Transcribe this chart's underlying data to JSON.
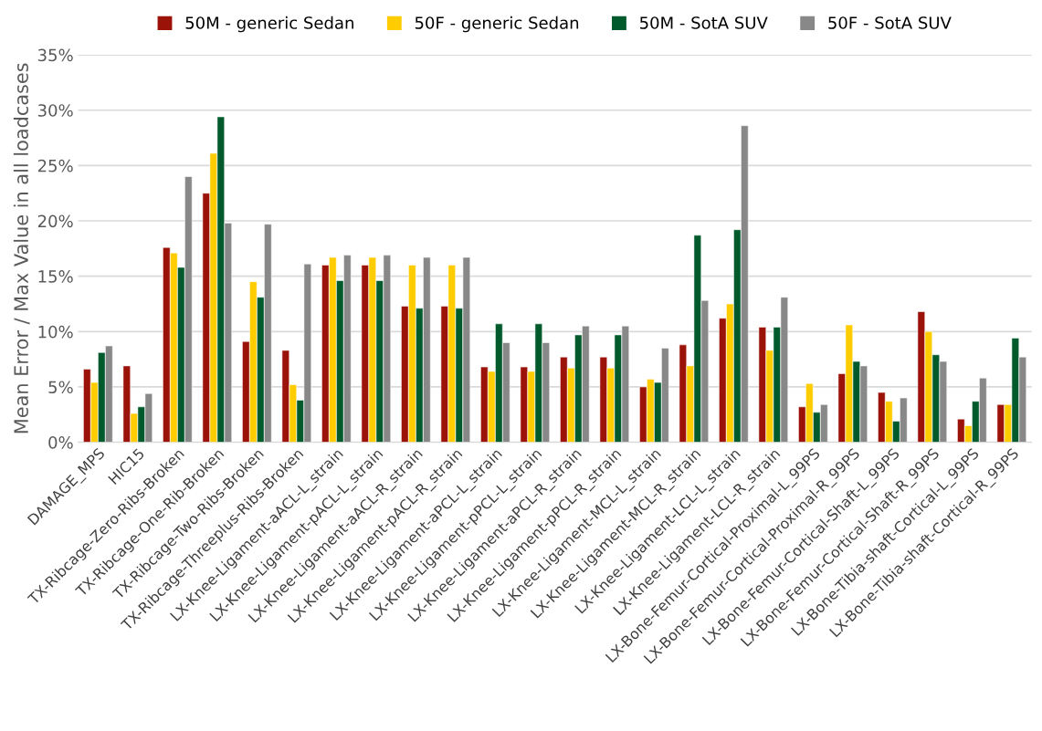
{
  "chart_data": {
    "type": "bar",
    "ylabel": "Mean Error / Max Value in all loadcases",
    "categories": [
      "DAMAGE_MPS",
      "HIC15",
      "TX-Ribcage-Zero-Ribs-Broken",
      "TX-Ribcage-One-Rib-Broken",
      "TX-Ribcage-Two-Ribs-Broken",
      "TX-Ribcage-Threeplus-Ribs-Broken",
      "LX-Knee-Ligament-aACL-L_strain",
      "LX-Knee-Ligament-pACL-L_strain",
      "LX-Knee-Ligament-aACL-R_strain",
      "LX-Knee-Ligament-pACL-R_strain",
      "LX-Knee-Ligament-aPCL-L_strain",
      "LX-Knee-Ligament-pPCL-L_strain",
      "LX-Knee-Ligament-aPCL-R_strain",
      "LX-Knee-Ligament-pPCL-R_strain",
      "LX-Knee-Ligament-MCL-L_strain",
      "LX-Knee-Ligament-MCL-R_strain",
      "LX-Knee-Ligament-LCL-L_strain",
      "LX-Knee-Ligament-LCL-R_strain",
      "LX-Bone-Femur-Cortical-Proximal-L_99PS",
      "LX-Bone-Femur-Cortical-Proximal-R_99PS",
      "LX-Bone-Femur-Cortical-Shaft-L_99PS",
      "LX-Bone-Femur-Cortical-Shaft-R_99PS",
      "LX-Bone-Tibia-shaft-Cortical-L_99PS",
      "LX-Bone-Tibia-shaft-Cortical-R_99PS"
    ],
    "series": [
      {
        "name": "50M - generic Sedan",
        "color": "#9b1208",
        "values": [
          6.6,
          6.9,
          17.6,
          22.5,
          9.1,
          8.3,
          16.0,
          16.0,
          12.3,
          12.3,
          6.8,
          6.8,
          7.7,
          7.7,
          5.0,
          8.8,
          11.2,
          10.4,
          3.2,
          6.2,
          4.5,
          11.8,
          2.1,
          3.4
        ]
      },
      {
        "name": "50F - generic Sedan",
        "color": "#ffcc00",
        "values": [
          5.4,
          2.6,
          17.1,
          26.1,
          14.5,
          5.2,
          16.7,
          16.7,
          16.0,
          16.0,
          6.4,
          6.4,
          6.7,
          6.7,
          5.7,
          6.9,
          12.5,
          8.3,
          5.3,
          10.6,
          3.7,
          10.0,
          1.5,
          3.4
        ]
      },
      {
        "name": "50M - SotA SUV",
        "color": "#005a2b",
        "values": [
          8.1,
          3.2,
          15.8,
          29.4,
          13.1,
          3.8,
          14.6,
          14.6,
          12.1,
          12.1,
          10.7,
          10.7,
          9.7,
          9.7,
          5.4,
          18.7,
          19.2,
          10.4,
          2.7,
          7.3,
          1.9,
          7.9,
          3.7,
          9.4
        ]
      },
      {
        "name": "50F - SotA SUV",
        "color": "#888888",
        "values": [
          8.7,
          4.4,
          24.0,
          19.8,
          19.7,
          16.1,
          16.9,
          16.9,
          16.7,
          16.7,
          9.0,
          9.0,
          10.5,
          10.5,
          8.5,
          12.8,
          28.6,
          13.1,
          3.4,
          6.9,
          4.0,
          7.3,
          5.8,
          7.7
        ]
      }
    ],
    "ylim": [
      0,
      35
    ],
    "yticks": [
      {
        "value": 0,
        "label": "0%"
      },
      {
        "value": 5,
        "label": "5%"
      },
      {
        "value": 10,
        "label": "10%"
      },
      {
        "value": 15,
        "label": "15%"
      },
      {
        "value": 20,
        "label": "20%"
      },
      {
        "value": 25,
        "label": "25%"
      },
      {
        "value": 30,
        "label": "30%"
      },
      {
        "value": 35,
        "label": "35%"
      }
    ],
    "grid": "y",
    "legend": "top"
  }
}
